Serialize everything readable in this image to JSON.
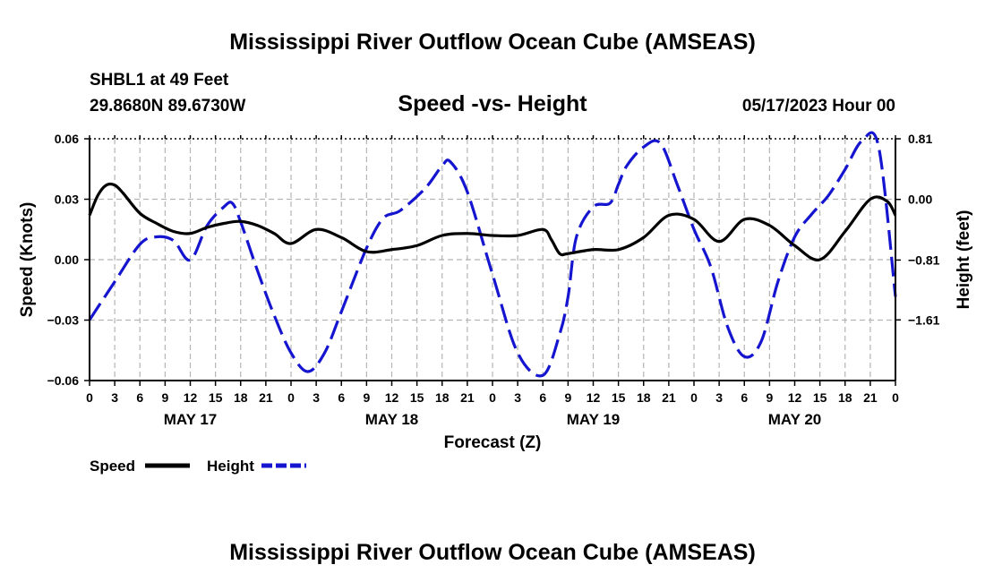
{
  "chart_data": {
    "type": "line",
    "page_title": "Mississippi River Outflow Ocean Cube (AMSEAS)",
    "page_title_repeat": "Mississippi River Outflow Ocean Cube (AMSEAS)",
    "station": "SHBL1 at 49 Feet",
    "location": "29.8680N  89.6730W",
    "title": "Speed -vs- Height",
    "date_label": "05/17/2023 Hour 00",
    "xlabel": "Forecast (Z)",
    "ylabel_left": "Speed (Knots)",
    "ylabel_right": "Height (feet)",
    "x_range": [
      0,
      96
    ],
    "x_tick_labels": [
      "0",
      "3",
      "6",
      "9",
      "12",
      "15",
      "18",
      "21",
      "0",
      "3",
      "6",
      "9",
      "12",
      "15",
      "18",
      "21",
      "0",
      "3",
      "6",
      "9",
      "12",
      "15",
      "18",
      "21",
      "0",
      "3",
      "6",
      "9",
      "12",
      "15",
      "18",
      "21",
      "0"
    ],
    "day_labels": [
      {
        "label": "MAY 17",
        "hour": 12
      },
      {
        "label": "MAY 18",
        "hour": 36
      },
      {
        "label": "MAY 19",
        "hour": 60
      },
      {
        "label": "MAY 20",
        "hour": 84
      }
    ],
    "y_left": {
      "range": [
        -0.06,
        0.06
      ],
      "ticks": [
        -0.06,
        -0.03,
        0.0,
        0.03,
        0.06
      ],
      "tick_labels": [
        "−0.06",
        "−0.03",
        "0.00",
        "0.03",
        "0.06"
      ]
    },
    "y_right": {
      "range": [
        -2.42,
        0.81
      ],
      "ticks": [
        -1.61,
        -0.81,
        0.0,
        0.81
      ],
      "tick_labels": [
        "−1.61",
        "−0.81",
        "0.00",
        "0.81"
      ]
    },
    "grid": true,
    "series": [
      {
        "name": "Speed",
        "axis": "left",
        "color": "#000000",
        "dash": "solid",
        "hours": [
          0,
          1,
          2,
          3,
          4,
          6,
          8,
          10,
          12,
          14,
          16,
          18,
          20,
          22,
          24,
          27,
          30,
          33,
          36,
          39,
          42,
          45,
          48,
          51,
          54,
          55,
          56,
          57,
          60,
          63,
          66,
          69,
          72,
          75,
          78,
          81,
          84,
          87,
          90,
          93,
          95,
          96
        ],
        "values": [
          0.022,
          0.032,
          0.037,
          0.037,
          0.033,
          0.023,
          0.018,
          0.014,
          0.013,
          0.016,
          0.018,
          0.019,
          0.017,
          0.013,
          0.008,
          0.015,
          0.011,
          0.004,
          0.005,
          0.007,
          0.012,
          0.013,
          0.012,
          0.012,
          0.015,
          0.01,
          0.003,
          0.003,
          0.005,
          0.005,
          0.011,
          0.022,
          0.02,
          0.009,
          0.02,
          0.017,
          0.007,
          0.0,
          0.014,
          0.03,
          0.029,
          0.022
        ]
      },
      {
        "name": "Height",
        "axis": "right",
        "color": "#1515d0",
        "dash": "dashed",
        "hours": [
          0,
          3,
          6,
          8,
          10,
          12,
          14,
          16,
          17,
          18,
          20,
          22,
          24,
          26,
          28,
          30,
          33,
          35,
          37,
          40,
          42,
          43,
          45,
          48,
          51,
          54,
          56,
          57,
          58,
          60,
          62,
          63,
          64,
          66,
          68,
          70,
          72,
          74,
          76,
          78,
          80,
          82,
          84,
          86,
          88,
          90,
          92,
          94,
          96
        ],
        "values": [
          -1.61,
          -1.1,
          -0.6,
          -0.5,
          -0.55,
          -0.81,
          -0.35,
          -0.1,
          -0.05,
          -0.3,
          -0.95,
          -1.55,
          -2.05,
          -2.3,
          -2.05,
          -1.5,
          -0.65,
          -0.25,
          -0.15,
          0.15,
          0.45,
          0.5,
          0.1,
          -1.0,
          -2.05,
          -2.35,
          -1.8,
          -1.3,
          -0.5,
          -0.1,
          -0.05,
          0.2,
          0.45,
          0.7,
          0.75,
          0.2,
          -0.4,
          -0.9,
          -1.7,
          -2.1,
          -1.9,
          -1.1,
          -0.5,
          -0.2,
          0.05,
          0.4,
          0.78,
          0.7,
          -1.3
        ]
      }
    ]
  }
}
